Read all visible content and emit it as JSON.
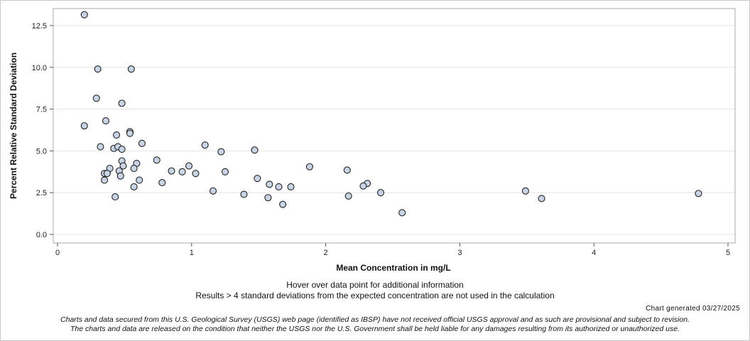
{
  "chart_data": {
    "type": "scatter",
    "xlabel": "Mean Concentration in mg/L",
    "ylabel": "Percent Relative Standard Deviation",
    "xlim": [
      0,
      5
    ],
    "ylim": [
      0,
      13.5
    ],
    "x_ticks": [
      0,
      1,
      2,
      3,
      4,
      5
    ],
    "x_tick_labels": [
      "0",
      "1",
      "2",
      "3",
      "4",
      "5"
    ],
    "y_ticks": [
      0,
      2.5,
      5,
      7.5,
      10,
      12.5
    ],
    "y_tick_labels": [
      "0.0",
      "2.5",
      "5.0",
      "7.5",
      "10.0",
      "12.5"
    ],
    "grid": "horizontal",
    "marker_color": "#c8d4e4",
    "marker_edge": "#222222",
    "points": [
      {
        "x": 0.2,
        "y": 13.15
      },
      {
        "x": 0.3,
        "y": 9.9
      },
      {
        "x": 0.55,
        "y": 9.9
      },
      {
        "x": 0.29,
        "y": 8.15
      },
      {
        "x": 0.48,
        "y": 7.85
      },
      {
        "x": 0.36,
        "y": 6.8
      },
      {
        "x": 0.2,
        "y": 6.5
      },
      {
        "x": 0.54,
        "y": 6.15
      },
      {
        "x": 0.54,
        "y": 6.05
      },
      {
        "x": 0.44,
        "y": 5.95
      },
      {
        "x": 0.63,
        "y": 5.45
      },
      {
        "x": 0.32,
        "y": 5.25
      },
      {
        "x": 0.42,
        "y": 5.15
      },
      {
        "x": 0.45,
        "y": 5.25
      },
      {
        "x": 0.48,
        "y": 5.1
      },
      {
        "x": 1.1,
        "y": 5.35
      },
      {
        "x": 1.22,
        "y": 4.95
      },
      {
        "x": 1.47,
        "y": 5.05
      },
      {
        "x": 0.74,
        "y": 4.45
      },
      {
        "x": 0.48,
        "y": 4.4
      },
      {
        "x": 0.59,
        "y": 4.25
      },
      {
        "x": 0.49,
        "y": 4.1
      },
      {
        "x": 0.98,
        "y": 4.1
      },
      {
        "x": 1.88,
        "y": 4.05
      },
      {
        "x": 0.39,
        "y": 3.95
      },
      {
        "x": 0.57,
        "y": 3.95
      },
      {
        "x": 0.46,
        "y": 3.8
      },
      {
        "x": 0.85,
        "y": 3.8
      },
      {
        "x": 0.93,
        "y": 3.75
      },
      {
        "x": 1.25,
        "y": 3.75
      },
      {
        "x": 2.16,
        "y": 3.85
      },
      {
        "x": 0.35,
        "y": 3.65
      },
      {
        "x": 0.37,
        "y": 3.65
      },
      {
        "x": 1.03,
        "y": 3.65
      },
      {
        "x": 0.47,
        "y": 3.5
      },
      {
        "x": 1.49,
        "y": 3.35
      },
      {
        "x": 0.35,
        "y": 3.25
      },
      {
        "x": 0.61,
        "y": 3.25
      },
      {
        "x": 0.78,
        "y": 3.1
      },
      {
        "x": 1.58,
        "y": 3.0
      },
      {
        "x": 2.31,
        "y": 3.05
      },
      {
        "x": 2.28,
        "y": 2.9
      },
      {
        "x": 1.65,
        "y": 2.85
      },
      {
        "x": 1.74,
        "y": 2.85
      },
      {
        "x": 0.57,
        "y": 2.85
      },
      {
        "x": 1.16,
        "y": 2.6
      },
      {
        "x": 3.49,
        "y": 2.6
      },
      {
        "x": 2.41,
        "y": 2.5
      },
      {
        "x": 4.78,
        "y": 2.45
      },
      {
        "x": 1.39,
        "y": 2.4
      },
      {
        "x": 2.17,
        "y": 2.3
      },
      {
        "x": 0.43,
        "y": 2.25
      },
      {
        "x": 1.57,
        "y": 2.2
      },
      {
        "x": 3.61,
        "y": 2.15
      },
      {
        "x": 1.68,
        "y": 1.8
      },
      {
        "x": 2.57,
        "y": 1.3
      }
    ]
  },
  "notes": {
    "hover": "Hover over data point for additional information",
    "results": "Results > 4 standard deviations from the expected concentration are not used in the calculation",
    "generated": "Chart generated 03/27/2025",
    "disclaimer_1": "Charts and data secured from this U.S. Geological Survey (USGS) web page (identified as IBSP) have not received official USGS approval and as such are provisional and subject to revision.",
    "disclaimer_2": "The charts and data are released on the condition that neither the USGS nor the U.S. Government shall be held liable for any damages resulting from its authorized or unauthorized use."
  }
}
